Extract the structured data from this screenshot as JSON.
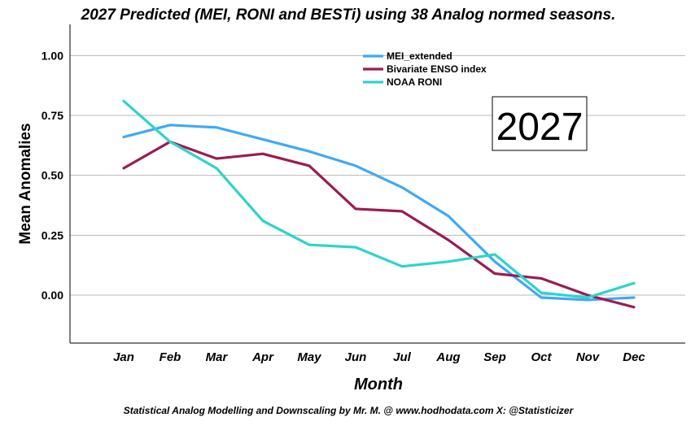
{
  "chart_data": {
    "type": "line",
    "title": "2027 Predicted (MEI, RONI and BESTi) using 38 Analog normed seasons.",
    "xlabel": "Month",
    "ylabel": "Mean Anomalies",
    "categories": [
      "Jan",
      "Feb",
      "Mar",
      "Apr",
      "May",
      "Jun",
      "Jul",
      "Aug",
      "Sep",
      "Oct",
      "Nov",
      "Dec"
    ],
    "yticks": [
      "1.00",
      "0.75",
      "0.50",
      "0.25",
      "0.00"
    ],
    "ylim": [
      -0.2,
      1.13
    ],
    "grid": true,
    "legend_position": "top-center",
    "annotation": "2027",
    "footer": "Statistical Analog Modelling and Downscaling by Mr. M. @ www.hodhodata.com X: @Statisticizer",
    "series": [
      {
        "name": "MEI_extended",
        "color": "#3fa9f5",
        "values": [
          0.66,
          0.71,
          0.7,
          0.65,
          0.6,
          0.54,
          0.45,
          0.33,
          0.14,
          -0.01,
          -0.02,
          -0.01
        ]
      },
      {
        "name": "Bivariate ENSO index",
        "color": "#9c1b52",
        "values": [
          0.53,
          0.64,
          0.57,
          0.59,
          0.54,
          0.36,
          0.35,
          0.23,
          0.09,
          0.07,
          0.0,
          -0.05
        ]
      },
      {
        "name": "NOAA RONI",
        "color": "#2cd4cc",
        "values": [
          0.81,
          0.64,
          0.53,
          0.31,
          0.21,
          0.2,
          0.12,
          0.14,
          0.17,
          0.01,
          -0.01,
          0.05
        ]
      }
    ]
  }
}
